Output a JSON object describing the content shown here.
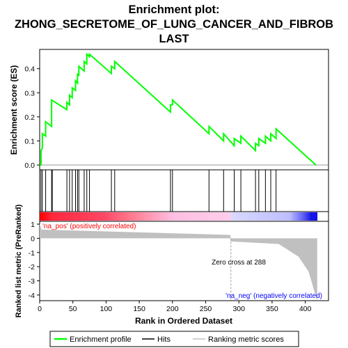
{
  "chart_data": {
    "type": "line",
    "title_lines": [
      "Enrichment plot:",
      "ZHONG_SECRETOME_OF_LUNG_CANCER_AND_FIBROB",
      "LAST"
    ],
    "xlabel": "Rank in Ordered Dataset",
    "es_panel": {
      "ylabel": "Enrichment score (ES)",
      "ylim": [
        -0.02,
        0.48
      ],
      "yticks": [
        0.0,
        0.1,
        0.2,
        0.3,
        0.4
      ],
      "ytick_labels": [
        "0.0",
        "0.1",
        "0.2",
        "0.3",
        "0.4"
      ],
      "series": [
        {
          "name": "Enrichment profile",
          "color": "#00ff00",
          "x": [
            0,
            2,
            2,
            4,
            4,
            9,
            9,
            18,
            18,
            41,
            41,
            45,
            45,
            49,
            49,
            54,
            54,
            57,
            57,
            59,
            59,
            67,
            67,
            71,
            71,
            75,
            75,
            108,
            108,
            113,
            113,
            197,
            197,
            200,
            200,
            255,
            255,
            277,
            277,
            293,
            293,
            303,
            303,
            325,
            325,
            330,
            330,
            340,
            340,
            348,
            348,
            356,
            356,
            416
          ],
          "y": [
            0.0,
            0.0,
            0.06,
            0.07,
            0.13,
            0.12,
            0.18,
            0.16,
            0.27,
            0.23,
            0.26,
            0.25,
            0.29,
            0.28,
            0.32,
            0.31,
            0.35,
            0.34,
            0.38,
            0.37,
            0.41,
            0.39,
            0.43,
            0.42,
            0.46,
            0.45,
            0.46,
            0.38,
            0.41,
            0.4,
            0.43,
            0.22,
            0.25,
            0.25,
            0.27,
            0.13,
            0.16,
            0.1,
            0.13,
            0.08,
            0.11,
            0.09,
            0.12,
            0.06,
            0.09,
            0.08,
            0.11,
            0.09,
            0.12,
            0.1,
            0.13,
            0.11,
            0.15,
            0.0
          ]
        }
      ]
    },
    "hits": [
      2,
      4,
      9,
      18,
      19,
      41,
      45,
      49,
      54,
      57,
      59,
      67,
      71,
      75,
      108,
      113,
      197,
      200,
      255,
      277,
      293,
      303,
      325,
      330,
      340,
      348,
      356
    ],
    "metric_panel": {
      "ylabel": "Ranked list metric (PreRanked)",
      "ylim": [
        -4.4,
        1.2
      ],
      "yticks": [
        1,
        0,
        -1,
        -2,
        -3,
        -4
      ],
      "ytick_labels": [
        "1",
        "0",
        "-1",
        "-2",
        "-3",
        "-4"
      ],
      "zero_cross": 288,
      "zero_cross_label": "Zero cross at 288",
      "pos_label": "'na_pos' (positively correlated)",
      "neg_label": "'na_neg' (negatively correlated)"
    },
    "xlim": [
      0,
      435
    ],
    "xticks": [
      0,
      50,
      100,
      150,
      200,
      250,
      300,
      350,
      400
    ],
    "xtick_labels": [
      "0",
      "50",
      "100",
      "150",
      "200",
      "250",
      "300",
      "350",
      "400"
    ],
    "n_genes": 418,
    "legend": {
      "position": "bottom",
      "entries": [
        {
          "label": "Enrichment profile",
          "color": "#00ff00"
        },
        {
          "label": "Hits",
          "color": "#000000"
        },
        {
          "label": "Ranking metric scores",
          "color": "#c0c0c0"
        }
      ]
    },
    "colors": {
      "pos_label": "#ff0000",
      "neg_label": "#0000ff",
      "zero_line": "#a0a0a0",
      "metric_fill": "#c0c0c0"
    }
  }
}
